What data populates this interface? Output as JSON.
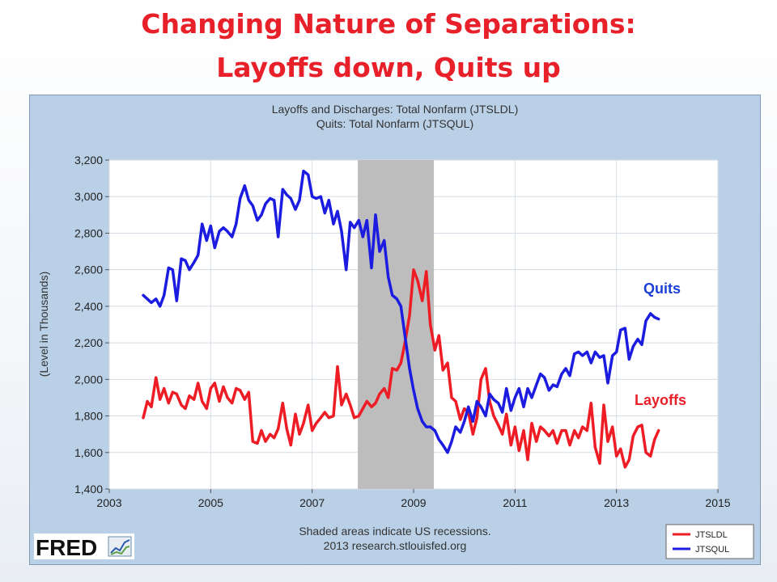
{
  "slide": {
    "title_line1": "Changing Nature of Separations:",
    "title_line2": "Layoffs down, Quits up",
    "label_quits": "Quits",
    "label_layoffs": "Layoffs"
  },
  "colors": {
    "title": "#e8202a",
    "layoffs": "#ee1c24",
    "quits": "#1c1ce0",
    "plot_bg": "#ffffff",
    "frame_bg": "#b9d0e6",
    "recession": "#bdbdbd"
  },
  "chart_data": {
    "type": "line",
    "title_line1": "Layoffs and Discharges: Total Nonfarm (JTSLDL)",
    "title_line2": "Quits: Total Nonfarm (JTSQUL)",
    "xlabel": "",
    "ylabel": "(Level in Thousands)",
    "xlim": [
      2003,
      2015
    ],
    "ylim": [
      1400,
      3200
    ],
    "x_ticks": [
      "2003",
      "2005",
      "2007",
      "2009",
      "2011",
      "2013",
      "2015"
    ],
    "y_ticks": [
      "1,400",
      "1,600",
      "1,800",
      "2,000",
      "2,200",
      "2,400",
      "2,600",
      "2,800",
      "3,000",
      "3,200"
    ],
    "grid": true,
    "legend_position": "bottom-right",
    "recession": [
      2007.9,
      2009.4
    ],
    "footnote_line1": "Shaded areas indicate US recessions.",
    "footnote_line2": "2013 research.stlouisfed.org",
    "brand": "FRED",
    "series": [
      {
        "name": "JTSLDL",
        "color": "#ee1c24",
        "points": [
          [
            2003.67,
            1790
          ],
          [
            2003.75,
            1880
          ],
          [
            2003.83,
            1850
          ],
          [
            2003.92,
            2010
          ],
          [
            2004.0,
            1890
          ],
          [
            2004.08,
            1950
          ],
          [
            2004.17,
            1870
          ],
          [
            2004.25,
            1930
          ],
          [
            2004.33,
            1920
          ],
          [
            2004.42,
            1860
          ],
          [
            2004.5,
            1840
          ],
          [
            2004.58,
            1910
          ],
          [
            2004.67,
            1890
          ],
          [
            2004.75,
            1980
          ],
          [
            2004.83,
            1880
          ],
          [
            2004.92,
            1840
          ],
          [
            2005.0,
            1950
          ],
          [
            2005.08,
            1980
          ],
          [
            2005.17,
            1880
          ],
          [
            2005.25,
            1960
          ],
          [
            2005.33,
            1900
          ],
          [
            2005.42,
            1870
          ],
          [
            2005.5,
            1950
          ],
          [
            2005.58,
            1940
          ],
          [
            2005.67,
            1890
          ],
          [
            2005.75,
            1930
          ],
          [
            2005.83,
            1660
          ],
          [
            2005.92,
            1650
          ],
          [
            2006.0,
            1720
          ],
          [
            2006.08,
            1660
          ],
          [
            2006.17,
            1700
          ],
          [
            2006.25,
            1680
          ],
          [
            2006.33,
            1730
          ],
          [
            2006.42,
            1870
          ],
          [
            2006.5,
            1730
          ],
          [
            2006.58,
            1640
          ],
          [
            2006.67,
            1810
          ],
          [
            2006.75,
            1700
          ],
          [
            2006.83,
            1760
          ],
          [
            2006.92,
            1860
          ],
          [
            2007.0,
            1720
          ],
          [
            2007.08,
            1760
          ],
          [
            2007.17,
            1790
          ],
          [
            2007.25,
            1820
          ],
          [
            2007.33,
            1790
          ],
          [
            2007.42,
            1800
          ],
          [
            2007.5,
            2070
          ],
          [
            2007.58,
            1860
          ],
          [
            2007.67,
            1920
          ],
          [
            2007.75,
            1860
          ],
          [
            2007.83,
            1790
          ],
          [
            2007.92,
            1800
          ],
          [
            2008.0,
            1840
          ],
          [
            2008.08,
            1880
          ],
          [
            2008.17,
            1850
          ],
          [
            2008.25,
            1870
          ],
          [
            2008.33,
            1920
          ],
          [
            2008.42,
            1950
          ],
          [
            2008.5,
            1900
          ],
          [
            2008.58,
            2060
          ],
          [
            2008.67,
            2050
          ],
          [
            2008.75,
            2090
          ],
          [
            2008.83,
            2200
          ],
          [
            2008.92,
            2350
          ],
          [
            2009.0,
            2600
          ],
          [
            2009.08,
            2540
          ],
          [
            2009.17,
            2430
          ],
          [
            2009.25,
            2590
          ],
          [
            2009.33,
            2300
          ],
          [
            2009.42,
            2160
          ],
          [
            2009.5,
            2240
          ],
          [
            2009.58,
            2050
          ],
          [
            2009.67,
            2090
          ],
          [
            2009.75,
            1900
          ],
          [
            2009.83,
            1880
          ],
          [
            2009.92,
            1780
          ],
          [
            2010.0,
            1840
          ],
          [
            2010.08,
            1820
          ],
          [
            2010.17,
            1700
          ],
          [
            2010.25,
            1790
          ],
          [
            2010.33,
            2000
          ],
          [
            2010.42,
            2060
          ],
          [
            2010.5,
            1880
          ],
          [
            2010.58,
            1800
          ],
          [
            2010.67,
            1750
          ],
          [
            2010.75,
            1700
          ],
          [
            2010.83,
            1810
          ],
          [
            2010.92,
            1640
          ],
          [
            2011.0,
            1740
          ],
          [
            2011.08,
            1610
          ],
          [
            2011.17,
            1720
          ],
          [
            2011.25,
            1560
          ],
          [
            2011.33,
            1760
          ],
          [
            2011.42,
            1660
          ],
          [
            2011.5,
            1740
          ],
          [
            2011.58,
            1720
          ],
          [
            2011.67,
            1690
          ],
          [
            2011.75,
            1720
          ],
          [
            2011.83,
            1650
          ],
          [
            2011.92,
            1720
          ],
          [
            2012.0,
            1720
          ],
          [
            2012.08,
            1640
          ],
          [
            2012.17,
            1720
          ],
          [
            2012.25,
            1680
          ],
          [
            2012.33,
            1740
          ],
          [
            2012.42,
            1720
          ],
          [
            2012.5,
            1870
          ],
          [
            2012.58,
            1630
          ],
          [
            2012.67,
            1540
          ],
          [
            2012.75,
            1860
          ],
          [
            2012.83,
            1660
          ],
          [
            2012.92,
            1740
          ],
          [
            2013.0,
            1580
          ],
          [
            2013.08,
            1620
          ],
          [
            2013.17,
            1520
          ],
          [
            2013.25,
            1560
          ],
          [
            2013.33,
            1690
          ],
          [
            2013.42,
            1740
          ],
          [
            2013.5,
            1750
          ],
          [
            2013.58,
            1600
          ],
          [
            2013.67,
            1580
          ],
          [
            2013.75,
            1670
          ],
          [
            2013.83,
            1720
          ]
        ]
      },
      {
        "name": "JTSQUL",
        "color": "#1c1ce0",
        "points": [
          [
            2003.67,
            2460
          ],
          [
            2003.75,
            2440
          ],
          [
            2003.83,
            2420
          ],
          [
            2003.92,
            2440
          ],
          [
            2004.0,
            2400
          ],
          [
            2004.08,
            2460
          ],
          [
            2004.17,
            2610
          ],
          [
            2004.25,
            2600
          ],
          [
            2004.33,
            2430
          ],
          [
            2004.42,
            2660
          ],
          [
            2004.5,
            2650
          ],
          [
            2004.58,
            2600
          ],
          [
            2004.67,
            2640
          ],
          [
            2004.75,
            2680
          ],
          [
            2004.83,
            2850
          ],
          [
            2004.92,
            2760
          ],
          [
            2005.0,
            2840
          ],
          [
            2005.08,
            2720
          ],
          [
            2005.17,
            2810
          ],
          [
            2005.25,
            2830
          ],
          [
            2005.33,
            2810
          ],
          [
            2005.42,
            2780
          ],
          [
            2005.5,
            2850
          ],
          [
            2005.58,
            2990
          ],
          [
            2005.67,
            3060
          ],
          [
            2005.75,
            2980
          ],
          [
            2005.83,
            2950
          ],
          [
            2005.92,
            2870
          ],
          [
            2006.0,
            2900
          ],
          [
            2006.08,
            2960
          ],
          [
            2006.17,
            2990
          ],
          [
            2006.25,
            2980
          ],
          [
            2006.33,
            2780
          ],
          [
            2006.42,
            3040
          ],
          [
            2006.5,
            3010
          ],
          [
            2006.58,
            2990
          ],
          [
            2006.67,
            2930
          ],
          [
            2006.75,
            2980
          ],
          [
            2006.83,
            3140
          ],
          [
            2006.92,
            3120
          ],
          [
            2007.0,
            3000
          ],
          [
            2007.08,
            2990
          ],
          [
            2007.17,
            3000
          ],
          [
            2007.25,
            2910
          ],
          [
            2007.33,
            2980
          ],
          [
            2007.42,
            2850
          ],
          [
            2007.5,
            2920
          ],
          [
            2007.58,
            2810
          ],
          [
            2007.67,
            2600
          ],
          [
            2007.75,
            2860
          ],
          [
            2007.83,
            2830
          ],
          [
            2007.92,
            2870
          ],
          [
            2008.0,
            2780
          ],
          [
            2008.08,
            2870
          ],
          [
            2008.17,
            2610
          ],
          [
            2008.25,
            2900
          ],
          [
            2008.33,
            2700
          ],
          [
            2008.42,
            2760
          ],
          [
            2008.5,
            2560
          ],
          [
            2008.58,
            2460
          ],
          [
            2008.67,
            2440
          ],
          [
            2008.75,
            2400
          ],
          [
            2008.83,
            2240
          ],
          [
            2008.92,
            2060
          ],
          [
            2009.0,
            1940
          ],
          [
            2009.08,
            1840
          ],
          [
            2009.17,
            1770
          ],
          [
            2009.25,
            1740
          ],
          [
            2009.33,
            1740
          ],
          [
            2009.42,
            1720
          ],
          [
            2009.5,
            1670
          ],
          [
            2009.58,
            1640
          ],
          [
            2009.67,
            1600
          ],
          [
            2009.75,
            1660
          ],
          [
            2009.83,
            1740
          ],
          [
            2009.92,
            1710
          ],
          [
            2010.0,
            1770
          ],
          [
            2010.08,
            1850
          ],
          [
            2010.17,
            1770
          ],
          [
            2010.25,
            1880
          ],
          [
            2010.33,
            1850
          ],
          [
            2010.42,
            1800
          ],
          [
            2010.5,
            1920
          ],
          [
            2010.58,
            1890
          ],
          [
            2010.67,
            1870
          ],
          [
            2010.75,
            1820
          ],
          [
            2010.83,
            1950
          ],
          [
            2010.92,
            1830
          ],
          [
            2011.0,
            1900
          ],
          [
            2011.08,
            1950
          ],
          [
            2011.17,
            1850
          ],
          [
            2011.25,
            1950
          ],
          [
            2011.33,
            1900
          ],
          [
            2011.42,
            1970
          ],
          [
            2011.5,
            2030
          ],
          [
            2011.58,
            2010
          ],
          [
            2011.67,
            1940
          ],
          [
            2011.75,
            1970
          ],
          [
            2011.83,
            1960
          ],
          [
            2011.92,
            2030
          ],
          [
            2012.0,
            2060
          ],
          [
            2012.08,
            2020
          ],
          [
            2012.17,
            2140
          ],
          [
            2012.25,
            2150
          ],
          [
            2012.33,
            2130
          ],
          [
            2012.42,
            2150
          ],
          [
            2012.5,
            2090
          ],
          [
            2012.58,
            2150
          ],
          [
            2012.67,
            2120
          ],
          [
            2012.75,
            2130
          ],
          [
            2012.83,
            1980
          ],
          [
            2012.92,
            2130
          ],
          [
            2013.0,
            2150
          ],
          [
            2013.08,
            2270
          ],
          [
            2013.17,
            2280
          ],
          [
            2013.25,
            2110
          ],
          [
            2013.33,
            2180
          ],
          [
            2013.42,
            2220
          ],
          [
            2013.5,
            2190
          ],
          [
            2013.58,
            2320
          ],
          [
            2013.67,
            2360
          ],
          [
            2013.75,
            2340
          ],
          [
            2013.83,
            2330
          ]
        ]
      }
    ]
  }
}
